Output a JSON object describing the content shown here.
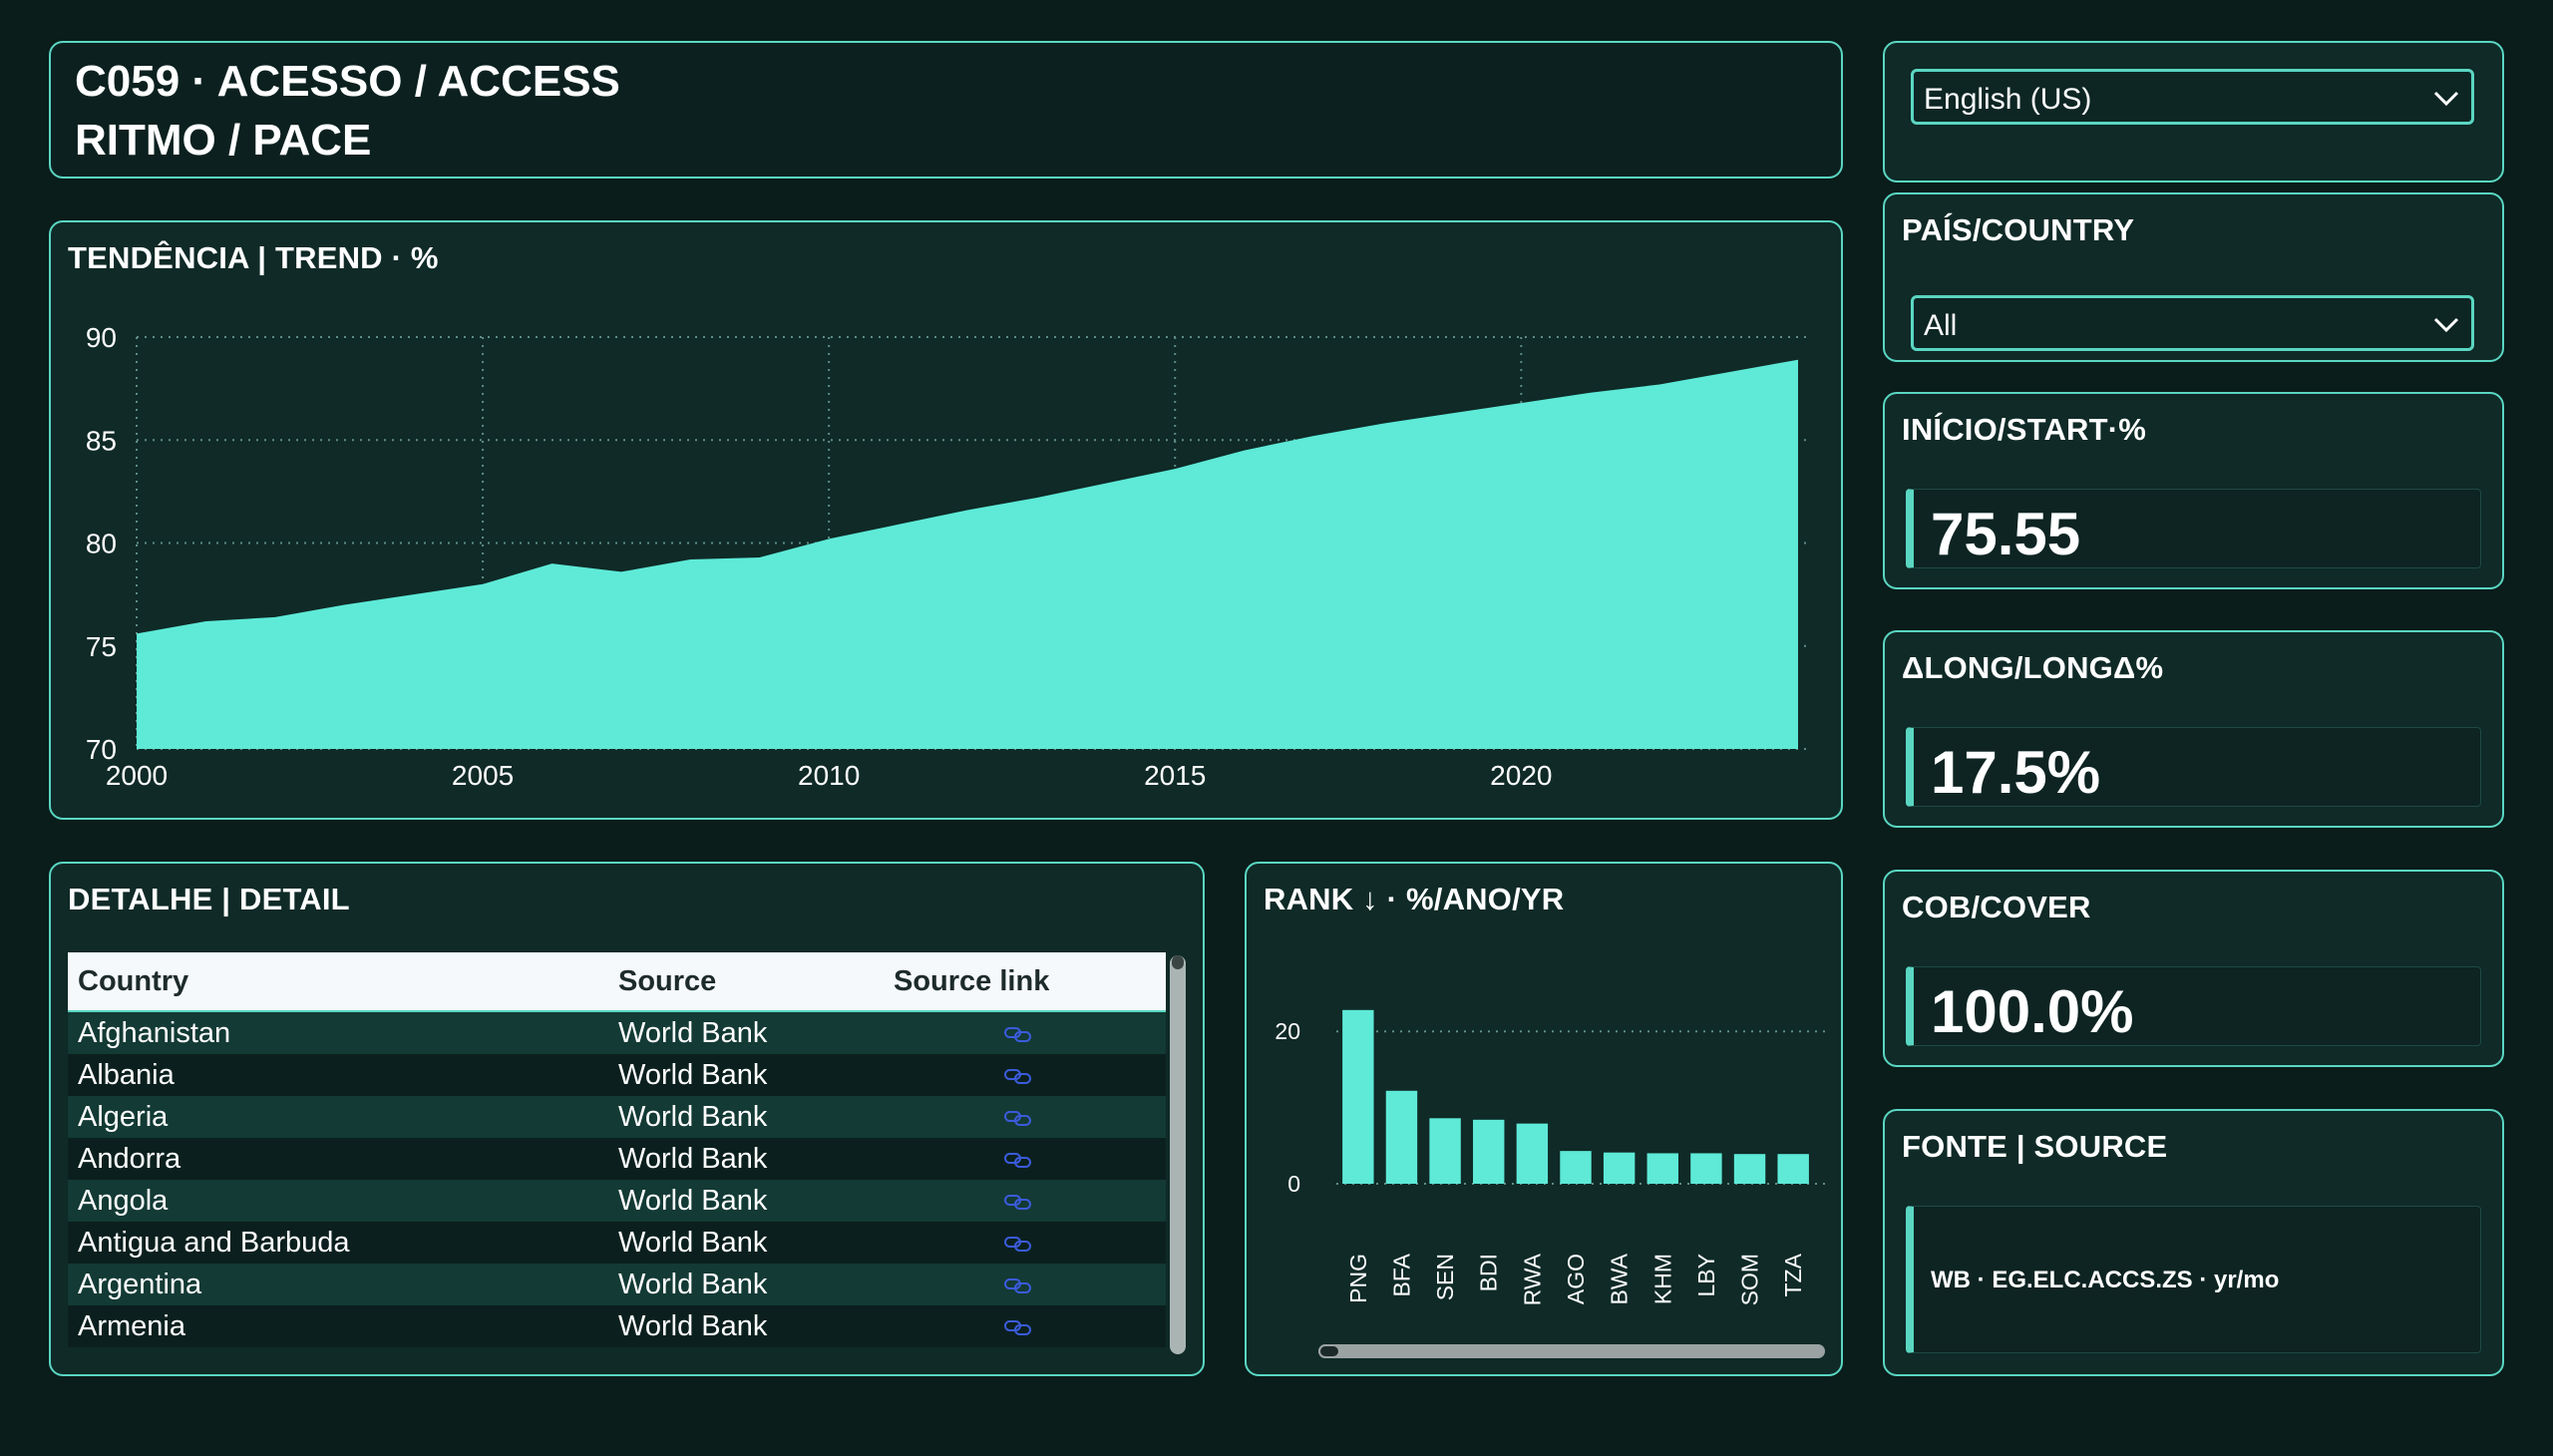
{
  "header": {
    "line1": "C059 · ACESSO / ACCESS",
    "line2": "RITMO / PACE"
  },
  "language_select": {
    "value": "English (US)"
  },
  "country_filter": {
    "title": "PAÍS/COUNTRY",
    "value": "All"
  },
  "kpis": [
    {
      "title": "INÍCIO/START·%",
      "value": "75.55"
    },
    {
      "title": "ΔLONG/LONGΔ%",
      "value": "17.5%"
    },
    {
      "title": "COB/COVER",
      "value": "100.0%"
    }
  ],
  "source_card": {
    "title": "FONTE | SOURCE",
    "text": "WB · EG.ELC.ACCS.ZS · yr/mo"
  },
  "trend": {
    "title": "TENDÊNCIA | TREND · %"
  },
  "detail": {
    "title": "DETALHE | DETAIL",
    "columns": [
      "Country",
      "Source",
      "Source link"
    ],
    "rows": [
      {
        "country": "Afghanistan",
        "source": "World Bank"
      },
      {
        "country": "Albania",
        "source": "World Bank"
      },
      {
        "country": "Algeria",
        "source": "World Bank"
      },
      {
        "country": "Andorra",
        "source": "World Bank"
      },
      {
        "country": "Angola",
        "source": "World Bank"
      },
      {
        "country": "Antigua and Barbuda",
        "source": "World Bank"
      },
      {
        "country": "Argentina",
        "source": "World Bank"
      },
      {
        "country": "Armenia",
        "source": "World Bank"
      }
    ]
  },
  "rank": {
    "title": "RANK ↓ · %/ANO/YR"
  },
  "colors": {
    "accent": "#5eead7",
    "background": "#0a1d1b",
    "card": "#0f2a27",
    "link": "#3b5bdb"
  },
  "chart_data": [
    {
      "type": "area",
      "title": "TENDÊNCIA | TREND · %",
      "xlabel": "",
      "ylabel": "",
      "x": [
        2000,
        2001,
        2002,
        2003,
        2004,
        2005,
        2006,
        2007,
        2008,
        2009,
        2010,
        2011,
        2012,
        2013,
        2014,
        2015,
        2016,
        2017,
        2018,
        2019,
        2020,
        2021,
        2022,
        2023,
        2024
      ],
      "series": [
        {
          "values": [
            75.6,
            76.2,
            76.4,
            77.0,
            77.5,
            78.0,
            79.0,
            78.6,
            79.2,
            79.3,
            80.2,
            80.9,
            81.6,
            82.2,
            82.9,
            83.6,
            84.5,
            85.2,
            85.8,
            86.3,
            86.8,
            87.3,
            87.7,
            88.3,
            88.9
          ]
        }
      ],
      "xticks": [
        2000,
        2005,
        2010,
        2015,
        2020
      ],
      "yticks": [
        70,
        75,
        80,
        85,
        90
      ],
      "xlim": [
        2000,
        2024
      ],
      "ylim": [
        70,
        90
      ],
      "grid": true
    },
    {
      "type": "bar",
      "title": "RANK ↓ · %/ANO/YR",
      "categories": [
        "PNG",
        "BFA",
        "SEN",
        "BDI",
        "RWA",
        "AGO",
        "BWA",
        "KHM",
        "LBY",
        "SOM",
        "TZA"
      ],
      "values": [
        22.8,
        12.2,
        8.6,
        8.4,
        7.9,
        4.3,
        4.1,
        4.0,
        4.0,
        3.9,
        3.9
      ],
      "yticks": [
        0,
        20
      ],
      "ylim": [
        0,
        25
      ],
      "grid": true
    }
  ]
}
